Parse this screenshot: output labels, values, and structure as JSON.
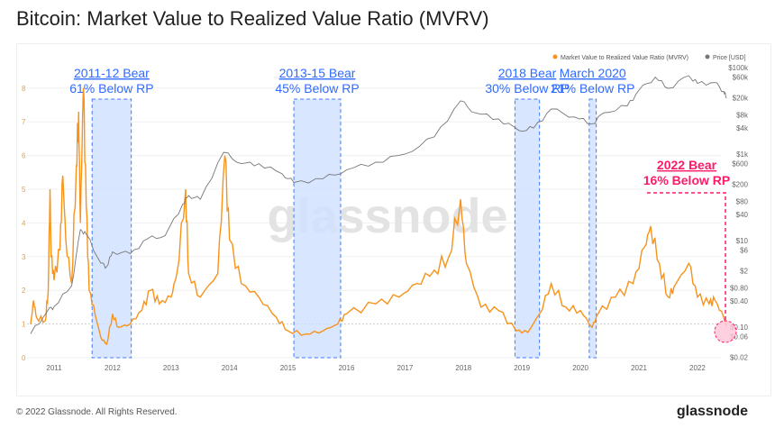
{
  "title": "Bitcoin: Market Value to Realized Value Ratio (MVRV)",
  "footer": {
    "copyright": "© 2022 Glassnode. All Rights Reserved.",
    "logo": "glassnode"
  },
  "watermark": "glassnode",
  "chart_data": {
    "type": "line",
    "title": "Bitcoin: Market Value to Realized Value Ratio (MVRV)",
    "legend_placement": "top-right",
    "legend": [
      "Market Value to Realized Value Ratio (MVRV)",
      "Price [USD]"
    ],
    "x_ticks": [
      "2011",
      "2012",
      "2013",
      "2014",
      "2015",
      "2016",
      "2017",
      "2018",
      "2019",
      "2020",
      "2021",
      "2022"
    ],
    "y_left": {
      "ticks": [
        "0",
        "1",
        "2",
        "3",
        "4",
        "5",
        "6",
        "7",
        "8"
      ],
      "range": [
        0,
        8.3
      ]
    },
    "y_right": {
      "scale": "log",
      "ticks": [
        "$100k",
        "$60k",
        "$20k",
        "$8k",
        "$4k",
        "$1k",
        "$600",
        "$200",
        "$80",
        "$40",
        "$10",
        "$6",
        "$2",
        "$0.80",
        "$0.40",
        "$0.10",
        "$0.06",
        "$0.02"
      ],
      "values": [
        100000,
        60000,
        20000,
        8000,
        4000,
        1000,
        600,
        200,
        80,
        40,
        10,
        6,
        2,
        0.8,
        0.4,
        0.1,
        0.06,
        0.02
      ]
    },
    "grid": true,
    "colors": {
      "mvrv": "#f7931a",
      "price": "#777777",
      "shade": "#cfe0ff",
      "shade_border": "#3f7bff",
      "highlight": "#ff1a66"
    },
    "series": [
      {
        "name": "Market Value to Realized Value Ratio (MVRV)",
        "axis": "left",
        "points": [
          [
            2010.6,
            1.0
          ],
          [
            2010.65,
            1.7
          ],
          [
            2010.7,
            1.2
          ],
          [
            2010.85,
            1.1
          ],
          [
            2010.9,
            2.0
          ],
          [
            2010.93,
            5.0
          ],
          [
            2010.95,
            3.0
          ],
          [
            2011.0,
            2.3
          ],
          [
            2011.1,
            3.2
          ],
          [
            2011.15,
            5.4
          ],
          [
            2011.2,
            3.5
          ],
          [
            2011.3,
            2.2
          ],
          [
            2011.38,
            5.7
          ],
          [
            2011.42,
            7.3
          ],
          [
            2011.45,
            4.0
          ],
          [
            2011.5,
            8.0
          ],
          [
            2011.55,
            4.5
          ],
          [
            2011.6,
            2.0
          ],
          [
            2011.7,
            1.3
          ],
          [
            2011.8,
            0.6
          ],
          [
            2011.9,
            0.4
          ],
          [
            2012.0,
            1.3
          ],
          [
            2012.1,
            0.9
          ],
          [
            2012.3,
            1.0
          ],
          [
            2012.5,
            1.4
          ],
          [
            2012.65,
            2.0
          ],
          [
            2012.8,
            1.6
          ],
          [
            2013.0,
            1.8
          ],
          [
            2013.1,
            2.5
          ],
          [
            2013.25,
            5.0
          ],
          [
            2013.3,
            2.5
          ],
          [
            2013.5,
            1.8
          ],
          [
            2013.8,
            2.5
          ],
          [
            2013.92,
            6.0
          ],
          [
            2014.0,
            3.5
          ],
          [
            2014.2,
            2.2
          ],
          [
            2014.5,
            1.8
          ],
          [
            2014.8,
            1.2
          ],
          [
            2015.0,
            0.8
          ],
          [
            2015.3,
            0.7
          ],
          [
            2015.6,
            0.8
          ],
          [
            2015.85,
            1.0
          ],
          [
            2016.0,
            1.3
          ],
          [
            2016.5,
            1.6
          ],
          [
            2016.9,
            1.8
          ],
          [
            2017.2,
            2.2
          ],
          [
            2017.5,
            2.6
          ],
          [
            2017.75,
            3.0
          ],
          [
            2017.95,
            4.7
          ],
          [
            2018.05,
            2.8
          ],
          [
            2018.3,
            1.5
          ],
          [
            2018.6,
            1.4
          ],
          [
            2018.9,
            0.8
          ],
          [
            2019.1,
            0.75
          ],
          [
            2019.3,
            1.3
          ],
          [
            2019.5,
            2.2
          ],
          [
            2019.75,
            1.5
          ],
          [
            2020.0,
            1.4
          ],
          [
            2020.2,
            0.9
          ],
          [
            2020.3,
            1.3
          ],
          [
            2020.6,
            1.8
          ],
          [
            2020.9,
            2.2
          ],
          [
            2021.1,
            3.3
          ],
          [
            2021.2,
            3.9
          ],
          [
            2021.35,
            2.8
          ],
          [
            2021.5,
            1.8
          ],
          [
            2021.6,
            2.1
          ],
          [
            2021.85,
            2.8
          ],
          [
            2022.0,
            1.8
          ],
          [
            2022.2,
            1.6
          ],
          [
            2022.3,
            1.7
          ],
          [
            2022.45,
            1.2
          ],
          [
            2022.5,
            0.95
          ]
        ]
      },
      {
        "name": "Price [USD]",
        "axis": "right",
        "points": [
          [
            2010.6,
            0.07
          ],
          [
            2010.9,
            0.25
          ],
          [
            2011.0,
            0.3
          ],
          [
            2011.3,
            0.9
          ],
          [
            2011.45,
            18
          ],
          [
            2011.55,
            14
          ],
          [
            2011.8,
            3
          ],
          [
            2011.9,
            2.5
          ],
          [
            2012.0,
            5.5
          ],
          [
            2012.3,
            5
          ],
          [
            2012.6,
            11
          ],
          [
            2012.9,
            13
          ],
          [
            2013.2,
            70
          ],
          [
            2013.3,
            110
          ],
          [
            2013.5,
            90
          ],
          [
            2013.9,
            1100
          ],
          [
            2014.2,
            600
          ],
          [
            2014.5,
            600
          ],
          [
            2014.9,
            350
          ],
          [
            2015.1,
            220
          ],
          [
            2015.6,
            270
          ],
          [
            2016.0,
            430
          ],
          [
            2016.5,
            650
          ],
          [
            2017.0,
            1000
          ],
          [
            2017.5,
            2500
          ],
          [
            2017.95,
            17000
          ],
          [
            2018.2,
            9000
          ],
          [
            2018.6,
            6500
          ],
          [
            2018.95,
            3500
          ],
          [
            2019.2,
            4000
          ],
          [
            2019.5,
            11000
          ],
          [
            2019.9,
            7200
          ],
          [
            2020.2,
            5000
          ],
          [
            2020.4,
            9000
          ],
          [
            2020.8,
            13000
          ],
          [
            2021.0,
            30000
          ],
          [
            2021.28,
            60000
          ],
          [
            2021.5,
            33000
          ],
          [
            2021.85,
            65000
          ],
          [
            2022.0,
            43000
          ],
          [
            2022.3,
            45000
          ],
          [
            2022.45,
            28000
          ],
          [
            2022.5,
            20000
          ]
        ]
      }
    ],
    "annotations": [
      {
        "line1": "2011-12 Bear",
        "line2": "61% Below RP",
        "x_range": [
          2011.65,
          2012.32
        ]
      },
      {
        "line1": "2013-15 Bear",
        "line2": "45% Below RP",
        "x_range": [
          2015.1,
          2015.9
        ]
      },
      {
        "line1": "2018 Bear",
        "line2": "30% Below RP",
        "x_range": [
          2018.88,
          2019.3
        ]
      },
      {
        "line1": "March 2020",
        "line2": "21% Below RP",
        "x_range": [
          2020.15,
          2020.27
        ]
      },
      {
        "line1": "2022 Bear",
        "line2": "16% Below RP",
        "x_range": [
          2022.45,
          2022.5
        ],
        "highlight": true
      }
    ]
  }
}
